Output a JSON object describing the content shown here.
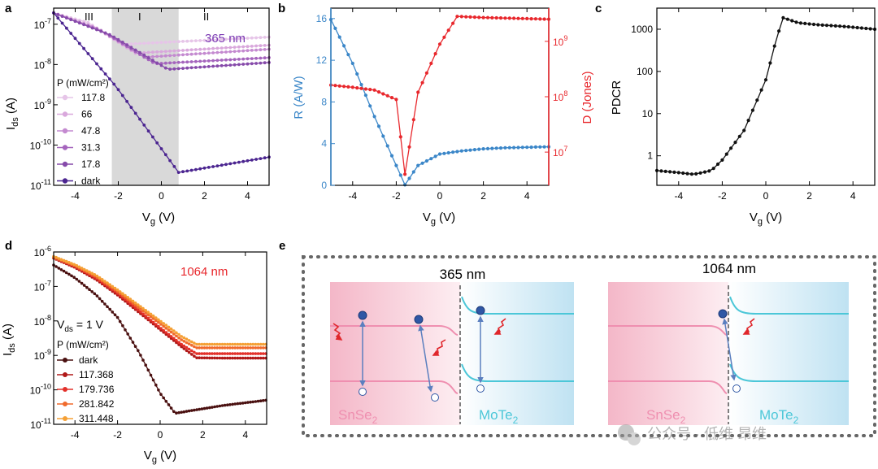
{
  "panels": {
    "a": {
      "label": "a",
      "regions": [
        "III",
        "I",
        "II"
      ],
      "wavelength": "365 nm",
      "legend_title": "P (mW/cm²)"
    },
    "b": {
      "label": "b"
    },
    "c": {
      "label": "c"
    },
    "d": {
      "label": "d",
      "wavelength": "1064 nm",
      "vds": "V",
      "vds_sub": "ds",
      "vds_value": "= 1 V",
      "legend_title": "P (mW/cm²)"
    },
    "e": {
      "label": "e",
      "left_title": "365 nm",
      "right_title": "1064 nm",
      "left_material": "SnSe",
      "right_material": "MoTe",
      "subscript": "2"
    }
  },
  "watermark": "公众号 · 低维 昂维",
  "colors": {
    "blue": "#3a86c8",
    "red": "#e8272c",
    "pink_band": "#ef8fb0",
    "cyan_band": "#4cc7d8",
    "electron": "#2f57a5",
    "arrow": "#5b7fbf",
    "photon": "#e0262b"
  },
  "chart_data": [
    {
      "panel": "a",
      "type": "line",
      "xlabel": "V",
      "xlabel_sub": "g",
      "xlabel_unit": " (V)",
      "ylabel": "I",
      "ylabel_sub": "ds",
      "ylabel_unit": " (A)",
      "xlim": [
        -5,
        5
      ],
      "ylim_log10": [
        -11,
        -6.6
      ],
      "yscale": "log",
      "xticks": [
        -4,
        -2,
        0,
        2,
        4
      ],
      "yticks": [
        {
          "exp": "-7",
          "v": -7
        },
        {
          "exp": "-8",
          "v": -8
        },
        {
          "exp": "-9",
          "v": -9
        },
        {
          "exp": "-10",
          "v": -10
        },
        {
          "exp": "-11",
          "v": -11
        }
      ],
      "shaded_region": [
        -2.3,
        0.8
      ],
      "series": [
        {
          "name": "117.8",
          "color": "#e6c5e8",
          "min_v": -1.8,
          "min_log": -7.5,
          "end_log": -7.32
        },
        {
          "name": "66",
          "color": "#d9a8dc",
          "min_v": -1.2,
          "min_log": -7.72,
          "end_log": -7.52
        },
        {
          "name": "47.8",
          "color": "#c48ad0",
          "min_v": -0.8,
          "min_log": -7.82,
          "end_log": -7.62
        },
        {
          "name": "31.3",
          "color": "#a565bd",
          "min_v": -0.3,
          "min_log": -7.98,
          "end_log": -7.83
        },
        {
          "name": "17.8",
          "color": "#864aaa",
          "min_v": 0.3,
          "min_log": -8.12,
          "end_log": -7.95
        },
        {
          "name": "dark",
          "color": "#4b2590",
          "min_v": 0.8,
          "min_log": -10.68,
          "end_log": -10.3
        }
      ],
      "start_log": -6.72
    },
    {
      "panel": "b",
      "type": "line",
      "xlabel": "V",
      "xlabel_sub": "g",
      "xlabel_unit": " (V)",
      "ylabel": "R (A/W)",
      "ylabel_right": "D (Jones)",
      "xlim": [
        -5,
        5
      ],
      "ylim": [
        0,
        17
      ],
      "y2lim_log10": [
        6.4,
        9.6
      ],
      "xticks": [
        -4,
        -2,
        0,
        2,
        4
      ],
      "yticks": [
        0,
        4,
        8,
        12,
        16
      ],
      "y2ticks": [
        {
          "exp": "7",
          "v": 7
        },
        {
          "exp": "8",
          "v": 8
        },
        {
          "exp": "9",
          "v": 9
        }
      ],
      "series": [
        {
          "name": "R",
          "axis": "left",
          "color": "#3a86c8",
          "points": [
            [
              -5,
              15.9
            ],
            [
              -4,
              11.7
            ],
            [
              -3,
              6.6
            ],
            [
              -2,
              1.9
            ],
            [
              -1.6,
              0.05
            ],
            [
              -1,
              1.9
            ],
            [
              0,
              3.0
            ],
            [
              1,
              3.3
            ],
            [
              2,
              3.5
            ],
            [
              3,
              3.6
            ],
            [
              4,
              3.65
            ],
            [
              5,
              3.7
            ]
          ]
        },
        {
          "name": "D",
          "axis": "right",
          "color": "#e8272c",
          "points_log": [
            [
              -5,
              8.21
            ],
            [
              -4,
              8.17
            ],
            [
              -3,
              8.12
            ],
            [
              -2,
              7.95
            ],
            [
              -1.6,
              6.6
            ],
            [
              -1,
              8.08
            ],
            [
              0,
              8.95
            ],
            [
              0.8,
              9.45
            ],
            [
              2,
              9.43
            ],
            [
              3,
              9.42
            ],
            [
              4,
              9.41
            ],
            [
              5,
              9.4
            ]
          ]
        }
      ]
    },
    {
      "panel": "c",
      "type": "line",
      "xlabel": "V",
      "xlabel_sub": "g",
      "xlabel_unit": " (V)",
      "ylabel": "PDCR",
      "xlim": [
        -5,
        5
      ],
      "ylim_log10": [
        -0.7,
        3.5
      ],
      "yscale": "log",
      "xticks": [
        -4,
        -2,
        0,
        2,
        4
      ],
      "yticks": [
        {
          "label": "1",
          "v": 0
        },
        {
          "label": "10",
          "v": 1
        },
        {
          "label": "100",
          "v": 2
        },
        {
          "label": "1000",
          "v": 3
        }
      ],
      "series": [
        {
          "name": "PDCR",
          "color": "#111111",
          "points_log": [
            [
              -5,
              -0.35
            ],
            [
              -4,
              -0.4
            ],
            [
              -3.3,
              -0.44
            ],
            [
              -2.5,
              -0.35
            ],
            [
              -2,
              -0.1
            ],
            [
              -1,
              0.6
            ],
            [
              0,
              1.8
            ],
            [
              0.5,
              2.8
            ],
            [
              0.8,
              3.27
            ],
            [
              1.5,
              3.15
            ],
            [
              2.5,
              3.1
            ],
            [
              3.5,
              3.07
            ],
            [
              5,
              3.0
            ]
          ]
        }
      ]
    },
    {
      "panel": "d",
      "type": "line",
      "xlabel": "V",
      "xlabel_sub": "g",
      "xlabel_unit": " (V)",
      "ylabel": "I",
      "ylabel_sub": "ds",
      "ylabel_unit": " (A)",
      "xlim": [
        -5,
        5
      ],
      "ylim_log10": [
        -11,
        -6
      ],
      "yscale": "log",
      "xticks": [
        -4,
        -2,
        0,
        2,
        4
      ],
      "yticks": [
        {
          "exp": "-6",
          "v": -6
        },
        {
          "exp": "-7",
          "v": -7
        },
        {
          "exp": "-8",
          "v": -8
        },
        {
          "exp": "-9",
          "v": -9
        },
        {
          "exp": "-10",
          "v": -10
        },
        {
          "exp": "-11",
          "v": -11
        }
      ],
      "series": [
        {
          "name": "dark",
          "color": "#4a1010",
          "points_log": [
            [
              -5,
              -6.38
            ],
            [
              -4,
              -6.75
            ],
            [
              -3,
              -7.25
            ],
            [
              -2,
              -7.9
            ],
            [
              -1,
              -8.9
            ],
            [
              0,
              -10.1
            ],
            [
              0.7,
              -10.68
            ],
            [
              1.5,
              -10.6
            ],
            [
              3,
              -10.45
            ],
            [
              5,
              -10.3
            ]
          ]
        },
        {
          "name": "117.368",
          "color": "#b01818",
          "points_log": [
            [
              -5,
              -6.18
            ],
            [
              -4,
              -6.45
            ],
            [
              -3,
              -6.8
            ],
            [
              -2,
              -7.25
            ],
            [
              -1,
              -7.75
            ],
            [
              0,
              -8.25
            ],
            [
              1,
              -8.75
            ],
            [
              1.7,
              -9.07
            ],
            [
              3,
              -9.08
            ],
            [
              5,
              -9.08
            ]
          ]
        },
        {
          "name": "179.736",
          "color": "#e3302a",
          "points_log": [
            [
              -5,
              -6.16
            ],
            [
              -4,
              -6.42
            ],
            [
              -3,
              -6.76
            ],
            [
              -2,
              -7.2
            ],
            [
              -1,
              -7.7
            ],
            [
              0,
              -8.2
            ],
            [
              1,
              -8.68
            ],
            [
              1.7,
              -8.95
            ],
            [
              3,
              -8.95
            ],
            [
              5,
              -8.95
            ]
          ]
        },
        {
          "name": "281.842",
          "color": "#f06a2c",
          "points_log": [
            [
              -5,
              -6.15
            ],
            [
              -4,
              -6.4
            ],
            [
              -3,
              -6.72
            ],
            [
              -2,
              -7.15
            ],
            [
              -1,
              -7.62
            ],
            [
              0,
              -8.08
            ],
            [
              1,
              -8.55
            ],
            [
              1.7,
              -8.78
            ],
            [
              3,
              -8.78
            ],
            [
              5,
              -8.78
            ]
          ]
        },
        {
          "name": "311.448",
          "color": "#f5a035",
          "points_log": [
            [
              -5,
              -6.13
            ],
            [
              -4,
              -6.37
            ],
            [
              -3,
              -6.68
            ],
            [
              -2,
              -7.1
            ],
            [
              -1,
              -7.55
            ],
            [
              0,
              -8.0
            ],
            [
              1,
              -8.45
            ],
            [
              1.7,
              -8.68
            ],
            [
              3,
              -8.68
            ],
            [
              5,
              -8.68
            ]
          ]
        }
      ]
    }
  ]
}
